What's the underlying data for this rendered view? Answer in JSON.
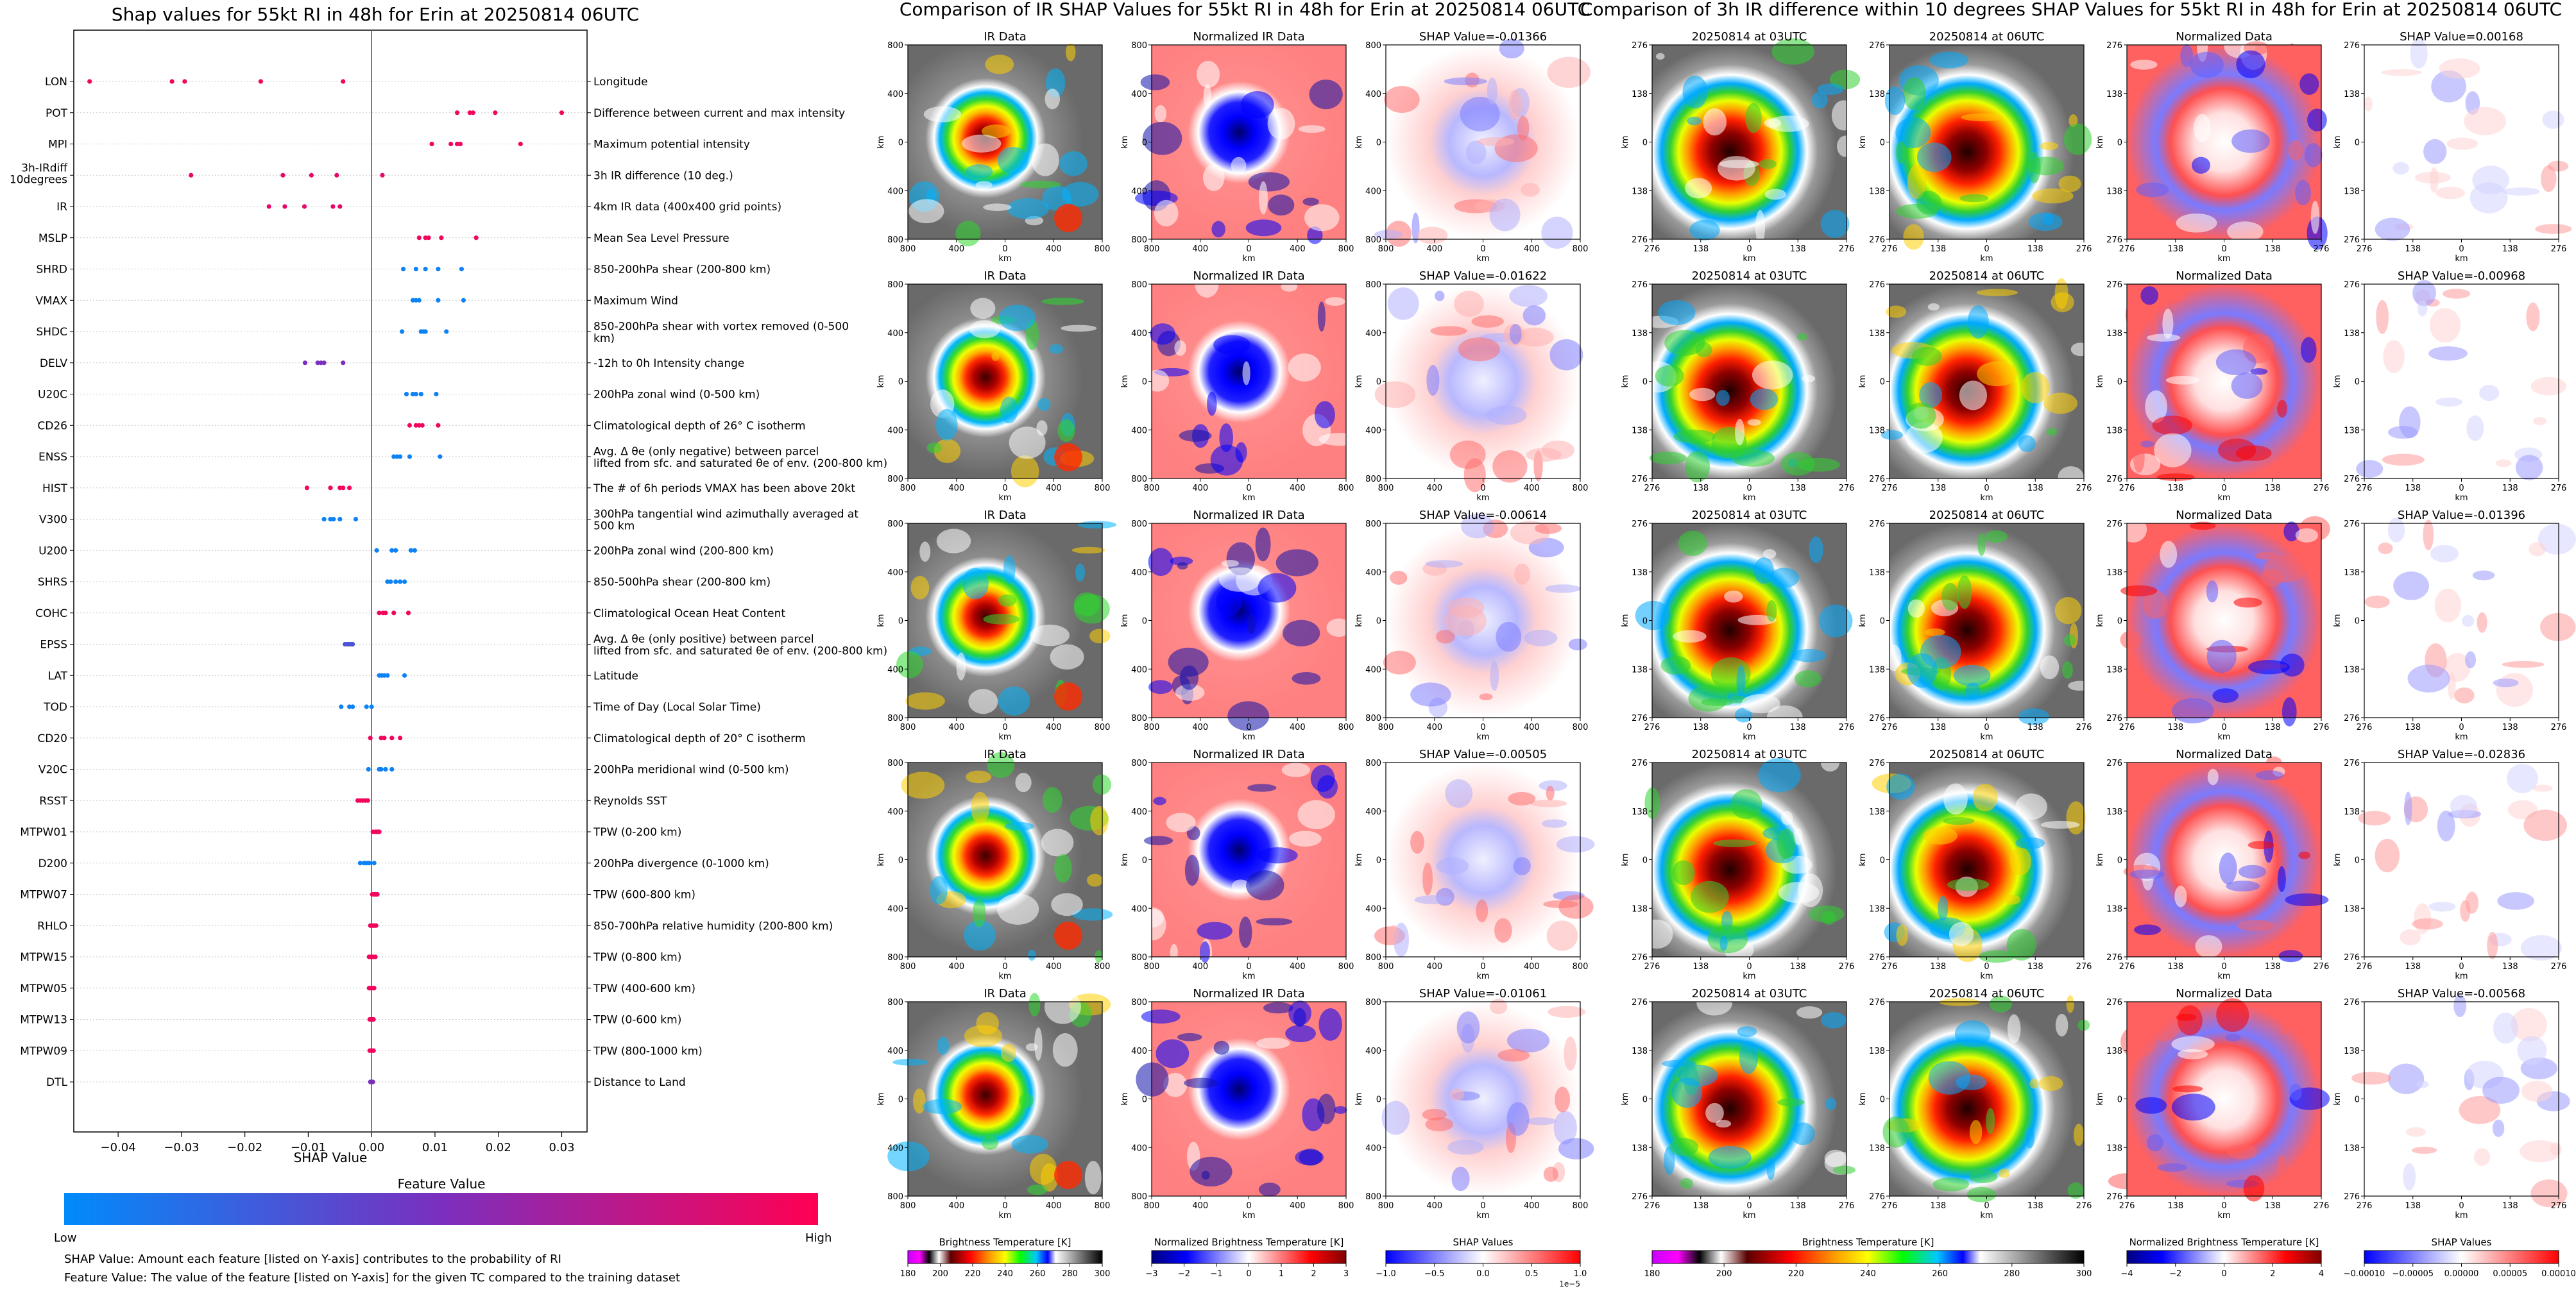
{
  "shap_summary": {
    "title": "Shap values for 55kt RI in 48h for Erin at 20250814 06UTC",
    "xlabel": "SHAP Value",
    "colorbar": {
      "title": "Feature Value",
      "low": "Low",
      "high": "High",
      "low_color": "#008bfb",
      "mid_color": "#7b2fbe",
      "high_color": "#ff0052"
    },
    "footnote1": "SHAP Value: Amount each feature [listed on Y-axis] contributes to the probability of RI",
    "footnote2": "Feature Value: The value of the feature [listed on Y-axis] for the given TC compared to the training dataset"
  },
  "ir_section": {
    "title": "Comparison of IR SHAP Values for 55kt RI in 48h for Erin at 20250814 06UTC",
    "col_titles": [
      "IR Data",
      "Normalized IR Data"
    ],
    "shap_titles": [
      "SHAP Value=-0.01366",
      "SHAP Value=-0.01622",
      "SHAP Value=-0.00614",
      "SHAP Value=-0.00505",
      "SHAP Value=-0.01061"
    ],
    "ticks": [
      "800",
      "400",
      "0",
      "400",
      "800"
    ],
    "axis_label": "km",
    "colorbars": [
      {
        "label": "Brightness Temperature [K]",
        "ticks": [
          "180",
          "200",
          "220",
          "240",
          "260",
          "280",
          "300"
        ]
      },
      {
        "label": "Normalized Brightness Temperature [K]",
        "ticks": [
          "−3",
          "−2",
          "−1",
          "0",
          "1",
          "2",
          "3"
        ]
      },
      {
        "label": "SHAP Values",
        "ticks": [
          "−1.0",
          "−0.5",
          "0.0",
          "0.5",
          "1.0"
        ],
        "exponent": "1e−5"
      }
    ]
  },
  "diff_section": {
    "title": "Comparison of 3h IR difference within 10 degrees SHAP Values for 55kt RI in 48h for Erin at 20250814 06UTC",
    "col_titles": [
      "20250814 at 03UTC",
      "20250814 at 06UTC",
      "Normalized Data"
    ],
    "shap_titles": [
      "SHAP Value=0.00168",
      "SHAP Value=-0.00968",
      "SHAP Value=-0.01396",
      "SHAP Value=-0.02836",
      "SHAP Value=-0.00568"
    ],
    "ticks": [
      "276",
      "138",
      "0",
      "138",
      "276"
    ],
    "axis_label": "km",
    "colorbars": [
      {
        "label": "Brightness Temperature [K]",
        "ticks": [
          "180",
          "200",
          "220",
          "240",
          "260",
          "280",
          "300"
        ]
      },
      {
        "label": "Normalized Brightness Temperature [K]",
        "ticks": [
          "−4",
          "−2",
          "0",
          "2",
          "4"
        ]
      },
      {
        "label": "SHAP Values",
        "ticks": [
          "−0.00010",
          "−0.00005",
          "0.00000",
          "0.00005",
          "0.00010"
        ]
      }
    ]
  },
  "chart_data": [
    {
      "type": "scatter",
      "title": "Shap values for 55kt RI in 48h for Erin at 20250814 06UTC",
      "xlabel": "SHAP Value",
      "xlim": [
        -0.047,
        0.034
      ],
      "x_ticks": [
        "−0.04",
        "−0.03",
        "−0.02",
        "−0.01",
        "0.00",
        "0.01",
        "0.02",
        "0.03"
      ],
      "x_tick_values": [
        -0.04,
        -0.03,
        -0.02,
        -0.01,
        0.0,
        0.01,
        0.02,
        0.03
      ],
      "features": [
        {
          "name": "LON",
          "desc": "Longitude",
          "fv": 0.95,
          "shap": [
            -0.0445,
            -0.0315,
            -0.0295,
            -0.0175,
            -0.0045
          ]
        },
        {
          "name": "POT",
          "desc": "Difference between current and max intensity",
          "fv": 0.95,
          "shap": [
            0.0135,
            0.0155,
            0.016,
            0.0195,
            0.03
          ]
        },
        {
          "name": "MPI",
          "desc": "Maximum potential intensity",
          "fv": 0.95,
          "shap": [
            0.0095,
            0.0125,
            0.0135,
            0.014,
            0.0235
          ]
        },
        {
          "name": "3h-IRdiff 10degrees",
          "desc": "3h IR difference (10 deg.)",
          "fv": 0.9,
          "shap": [
            -0.0285,
            -0.014,
            -0.0095,
            -0.0055,
            0.0017
          ]
        },
        {
          "name": "IR",
          "desc": "4km IR data (400x400 grid points)",
          "fv": 0.9,
          "shap": [
            -0.0162,
            -0.0137,
            -0.0106,
            -0.0061,
            -0.005
          ]
        },
        {
          "name": "MSLP",
          "desc": "Mean Sea Level Pressure",
          "fv": 0.95,
          "shap": [
            0.0075,
            0.0085,
            0.009,
            0.011,
            0.0165
          ]
        },
        {
          "name": "SHRD",
          "desc": "850-200hPa shear (200-800 km)",
          "fv": 0.05,
          "shap": [
            0.005,
            0.007,
            0.0085,
            0.0105,
            0.0142
          ]
        },
        {
          "name": "VMAX",
          "desc": "Maximum Wind",
          "fv": 0.05,
          "shap": [
            0.0065,
            0.007,
            0.0075,
            0.0105,
            0.0145
          ]
        },
        {
          "name": "SHDC",
          "desc": "850-200hPa shear with vortex removed (0-500 km)",
          "fv": 0.05,
          "shap": [
            0.0048,
            0.0078,
            0.0082,
            0.0085,
            0.0118
          ]
        },
        {
          "name": "DELV",
          "desc": "-12h to 0h Intensity change",
          "fv": 0.5,
          "shap": [
            -0.0105,
            -0.0085,
            -0.008,
            -0.0075,
            -0.0045
          ]
        },
        {
          "name": "U20C",
          "desc": "200hPa zonal wind (0-500 km)",
          "fv": 0.05,
          "shap": [
            0.0055,
            0.0065,
            0.007,
            0.0078,
            0.0102
          ]
        },
        {
          "name": "CD26",
          "desc": "Climatological depth of 26° C isotherm",
          "fv": 0.95,
          "shap": [
            0.006,
            0.007,
            0.0075,
            0.008,
            0.0105
          ]
        },
        {
          "name": "ENSS",
          "desc": "Avg. Δ θe (only negative) between parcel lifted from sfc. and saturated θe of env. (200-800 km)",
          "fv": 0.05,
          "shap": [
            0.0035,
            0.004,
            0.0045,
            0.006,
            0.0108
          ]
        },
        {
          "name": "HIST",
          "desc": "The # of 6h periods VMAX has been above 20kt",
          "fv": 0.95,
          "shap": [
            -0.0102,
            -0.0065,
            -0.005,
            -0.0045,
            -0.0035
          ]
        },
        {
          "name": "V300",
          "desc": "300hPa tangential wind azimuthally averaged at 500 km",
          "fv": 0.05,
          "shap": [
            -0.0075,
            -0.0065,
            -0.006,
            -0.005,
            -0.0025
          ]
        },
        {
          "name": "U200",
          "desc": "200hPa zonal wind (200-800 km)",
          "fv": 0.05,
          "shap": [
            0.0008,
            0.0032,
            0.0038,
            0.0062,
            0.0068
          ]
        },
        {
          "name": "SHRS",
          "desc": "850-500hPa shear (200-800 km)",
          "fv": 0.05,
          "shap": [
            0.0025,
            0.003,
            0.0038,
            0.0045,
            0.0052
          ]
        },
        {
          "name": "COHC",
          "desc": "Climatological Ocean Heat Content",
          "fv": 0.95,
          "shap": [
            0.0012,
            0.0018,
            0.0022,
            0.0035,
            0.0058
          ]
        },
        {
          "name": "EPSS",
          "desc": "Avg. Δ θe (only positive) between parcel lifted from sfc. and saturated θe of env. (200-800 km)",
          "fv": 0.3,
          "shap": [
            -0.0042,
            -0.0038,
            -0.0035,
            -0.0032,
            -0.003
          ]
        },
        {
          "name": "LAT",
          "desc": "Latitude",
          "fv": 0.05,
          "shap": [
            0.0012,
            0.0016,
            0.002,
            0.0025,
            0.0052
          ]
        },
        {
          "name": "TOD",
          "desc": "Time of Day (Local Solar Time)",
          "fv": 0.05,
          "shap": [
            -0.0048,
            -0.0035,
            -0.003,
            -0.0008,
            0.0
          ]
        },
        {
          "name": "CD20",
          "desc": "Climatological depth of 20° C isotherm",
          "fv": 0.95,
          "shap": [
            -0.0002,
            0.0015,
            0.002,
            0.0032,
            0.0045
          ]
        },
        {
          "name": "V20C",
          "desc": "200hPa meridional wind (0-500 km)",
          "fv": 0.05,
          "shap": [
            -0.0005,
            0.0012,
            0.0015,
            0.0022,
            0.0032
          ]
        },
        {
          "name": "RSST",
          "desc": "Reynolds SST",
          "fv": 0.95,
          "shap": [
            -0.0022,
            -0.0018,
            -0.0014,
            -0.001,
            -0.0006
          ]
        },
        {
          "name": "MTPW01",
          "desc": "TPW (0-200 km)",
          "fv": 0.95,
          "shap": [
            0.0002,
            0.0006,
            0.0008,
            0.001,
            0.0012
          ]
        },
        {
          "name": "D200",
          "desc": "200hPa divergence (0-1000 km)",
          "fv": 0.05,
          "shap": [
            -0.0018,
            -0.0012,
            -0.0008,
            -0.0004,
            0.0004
          ]
        },
        {
          "name": "MTPW07",
          "desc": "TPW (600-800 km)",
          "fv": 0.95,
          "shap": [
            0.0001,
            0.0004,
            0.0006,
            0.0008,
            0.0009
          ]
        },
        {
          "name": "RHLO",
          "desc": "850-700hPa relative humidity (200-800 km)",
          "fv": 0.95,
          "shap": [
            -0.0002,
            0.0001,
            0.0003,
            0.0005,
            0.0007
          ]
        },
        {
          "name": "MTPW15",
          "desc": "TPW (0-800 km)",
          "fv": 0.95,
          "shap": [
            -0.0004,
            -0.0001,
            0.0001,
            0.0003,
            0.0006
          ]
        },
        {
          "name": "MTPW05",
          "desc": "TPW (400-600 km)",
          "fv": 0.95,
          "shap": [
            -0.0004,
            -0.0002,
            0.0,
            0.0002,
            0.0004
          ]
        },
        {
          "name": "MTPW13",
          "desc": "TPW (0-600 km)",
          "fv": 0.95,
          "shap": [
            -0.0003,
            -0.0001,
            0.0001,
            0.0002,
            0.0003
          ]
        },
        {
          "name": "MTPW09",
          "desc": "TPW (800-1000 km)",
          "fv": 0.95,
          "shap": [
            -0.0003,
            -0.0001,
            0.0,
            0.0002,
            0.0003
          ]
        },
        {
          "name": "DTL",
          "desc": "Distance to Land",
          "fv": 0.5,
          "shap": [
            -0.0002,
            -0.0001,
            0.0,
            0.0001,
            0.0002
          ]
        }
      ]
    }
  ]
}
